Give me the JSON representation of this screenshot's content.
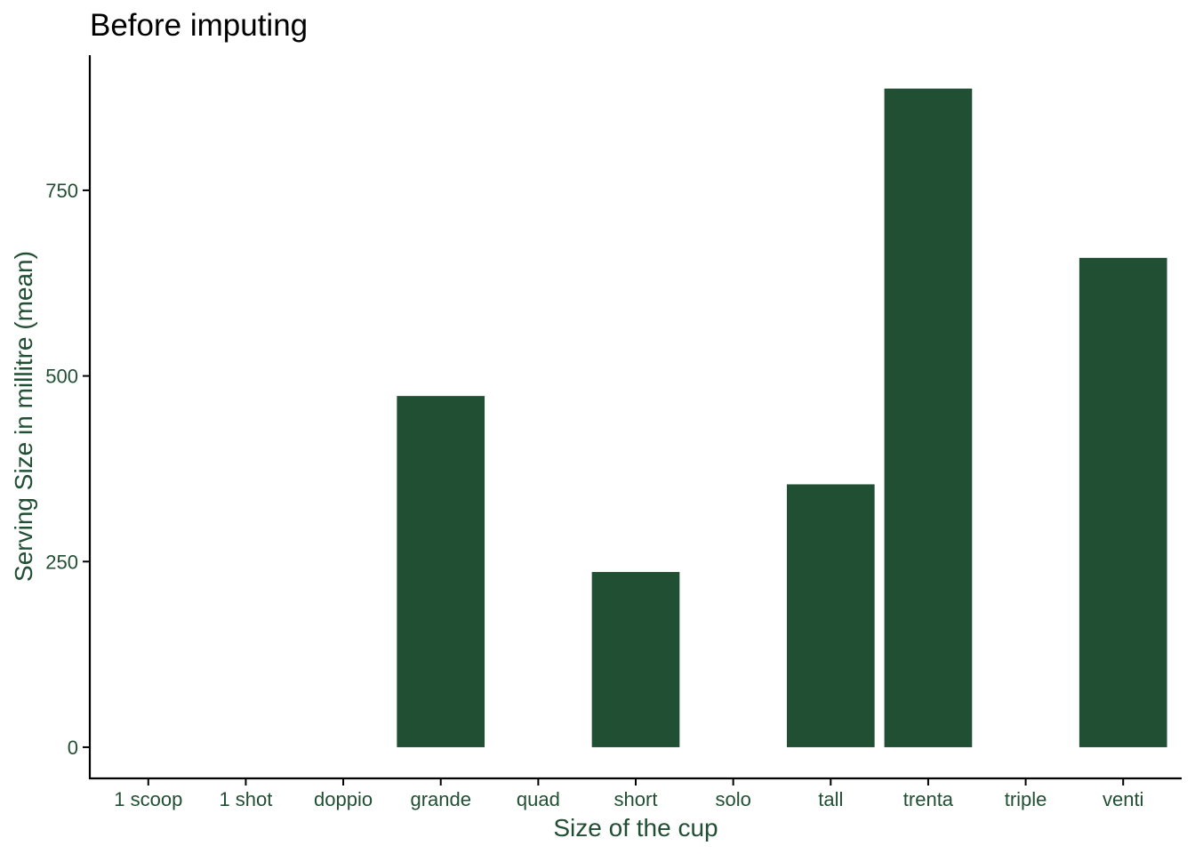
{
  "chart_data": {
    "type": "bar",
    "title": "Before imputing",
    "xlabel": "Size of the cup",
    "ylabel": "Serving Size in millitre (mean)",
    "categories": [
      "1 scoop",
      "1 shot",
      "doppio",
      "grande",
      "quad",
      "short",
      "solo",
      "tall",
      "trenta",
      "triple",
      "venti"
    ],
    "values": [
      null,
      null,
      null,
      473,
      null,
      236,
      null,
      354,
      887,
      null,
      659
    ],
    "y_ticks": [
      0,
      250,
      500,
      750
    ],
    "y_tick_labels": [
      "0",
      "250",
      "500",
      "750"
    ],
    "ylim": [
      -42,
      932
    ],
    "grid": false,
    "legend": "none",
    "bar_color": "#214f33",
    "text_color": "#214f33"
  }
}
